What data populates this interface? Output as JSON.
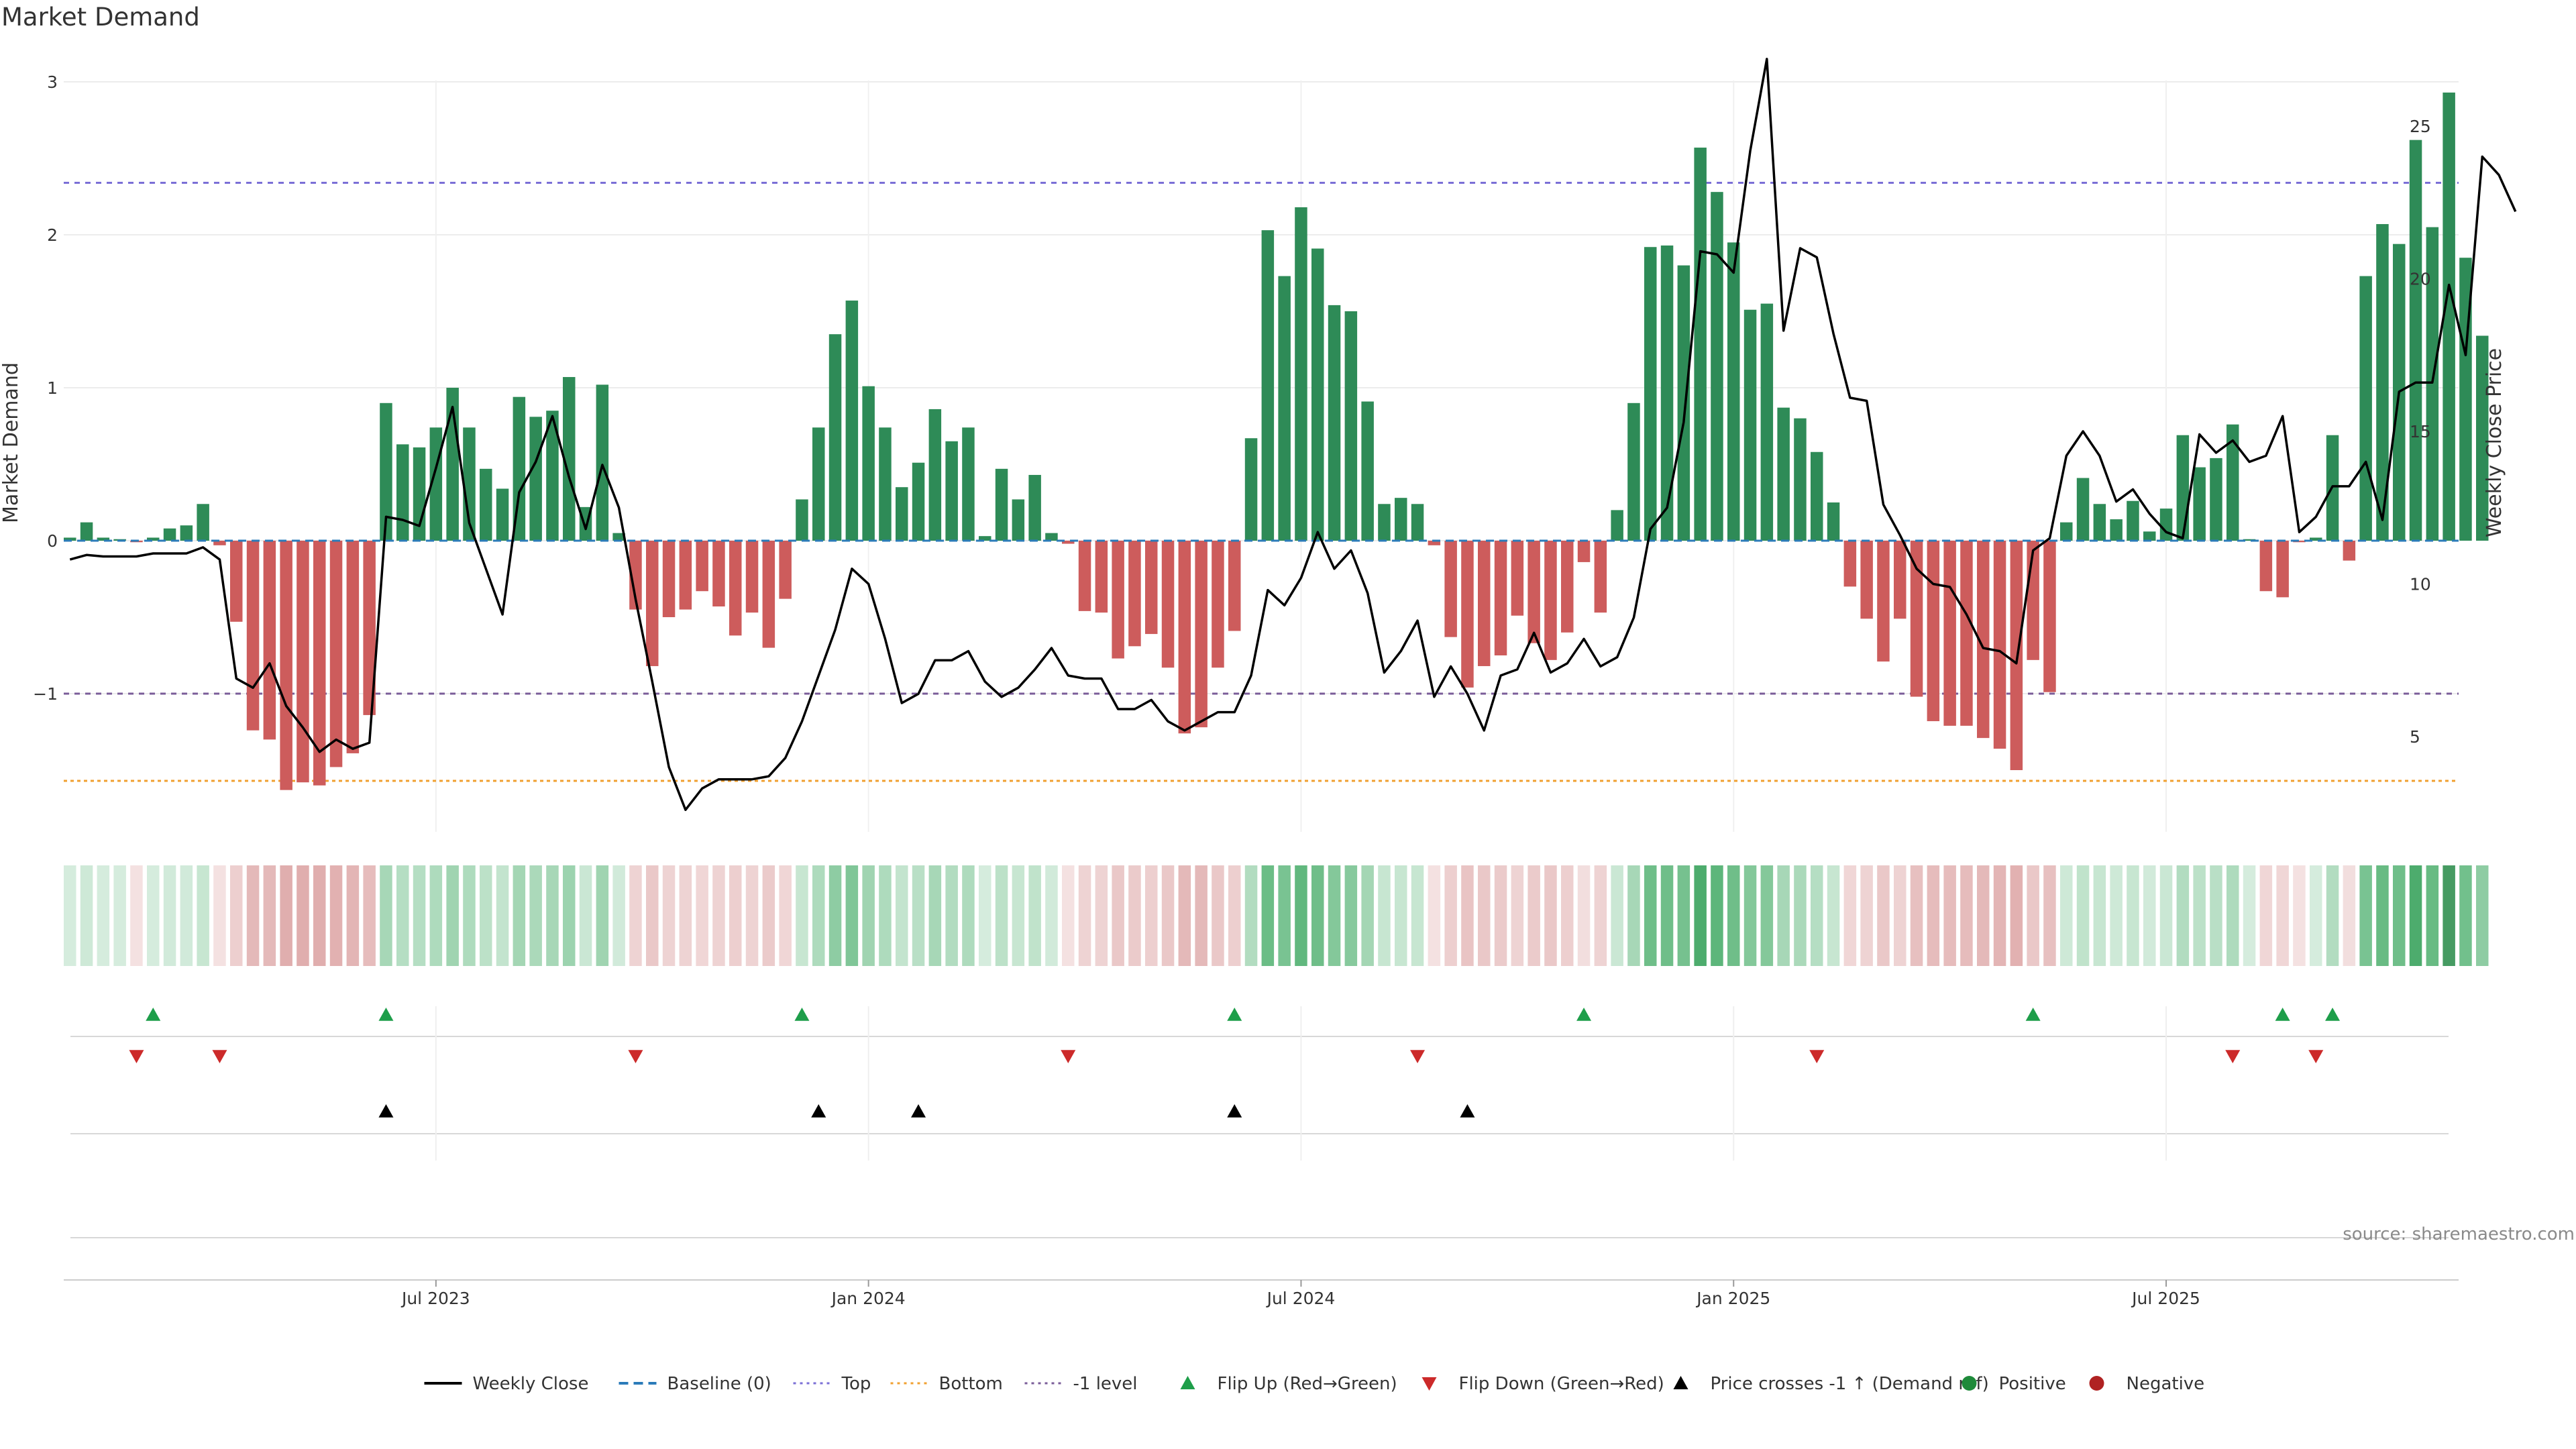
{
  "chart_data": {
    "type": "bar",
    "title": "Market Demand",
    "ylabel": "Market Demand",
    "y2label": "Weekly Close Price",
    "ylim": [
      -1.9,
      3.05
    ],
    "y2lim": [
      2.2,
      27.5
    ],
    "yticks": [
      -1,
      0,
      1,
      2,
      3
    ],
    "y2ticks": [
      5,
      10,
      15,
      20,
      25
    ],
    "ytick_labels": [
      "−1",
      "0",
      "1",
      "2",
      "3"
    ],
    "y2tick_labels": [
      "5",
      "10",
      "15",
      "20",
      "25"
    ],
    "x_tick_indices": [
      22,
      48,
      74,
      100,
      126
    ],
    "x_tick_labels": [
      "Jul 2023",
      "Jan 2024",
      "Jul 2024",
      "Jan 2025",
      "Jul 2025"
    ],
    "reference_lines": [
      {
        "name": "Top",
        "value": 2.34,
        "color": "#7b6fd6",
        "dash": "8,8"
      },
      {
        "name": "-1 level",
        "value": -1.0,
        "color": "#7a5c98",
        "dash": "8,8"
      },
      {
        "name": "Bottom",
        "value": -1.57,
        "color": "#f0a030",
        "dash": "5,5"
      }
    ],
    "series": [
      {
        "name": "Market Demand",
        "kind": "bar",
        "values": [
          0.02,
          0.12,
          0.02,
          0.01,
          -0.01,
          0.02,
          0.08,
          0.1,
          0.24,
          -0.03,
          -0.53,
          -1.24,
          -1.3,
          -1.63,
          -1.58,
          -1.6,
          -1.48,
          -1.39,
          -1.14,
          0.9,
          0.63,
          0.61,
          0.74,
          1.0,
          0.74,
          0.47,
          0.34,
          0.94,
          0.81,
          0.85,
          1.07,
          0.22,
          1.02,
          0.05,
          -0.45,
          -0.82,
          -0.5,
          -0.45,
          -0.33,
          -0.43,
          -0.62,
          -0.47,
          -0.7,
          -0.38,
          0.27,
          0.74,
          1.35,
          1.57,
          1.01,
          0.74,
          0.35,
          0.51,
          0.86,
          0.65,
          0.74,
          0.03,
          0.47,
          0.27,
          0.43,
          0.05,
          -0.02,
          -0.46,
          -0.47,
          -0.77,
          -0.69,
          -0.61,
          -0.83,
          -1.26,
          -1.22,
          -0.83,
          -0.59,
          0.67,
          2.03,
          1.73,
          2.18,
          1.91,
          1.54,
          1.5,
          0.91,
          0.24,
          0.28,
          0.24,
          -0.03,
          -0.63,
          -0.96,
          -0.82,
          -0.75,
          -0.49,
          -0.67,
          -0.78,
          -0.6,
          -0.14,
          -0.47,
          0.2,
          0.9,
          1.92,
          1.93,
          1.8,
          2.57,
          2.28,
          1.95,
          1.51,
          1.55,
          0.87,
          0.8,
          0.58,
          0.25,
          -0.3,
          -0.51,
          -0.79,
          -0.51,
          -1.02,
          -1.18,
          -1.21,
          -1.21,
          -1.29,
          -1.36,
          -1.5,
          -0.78,
          -0.99,
          0.12,
          0.41,
          0.24,
          0.14,
          0.26,
          0.06,
          0.21,
          0.69,
          0.48,
          0.54,
          0.76,
          0.01,
          -0.33,
          -0.37,
          -0.01,
          0.02,
          0.69,
          -0.13,
          1.73,
          2.07,
          1.94,
          2.62,
          2.05,
          2.93,
          1.85,
          1.34
        ]
      },
      {
        "name": "Weekly Close",
        "kind": "line",
        "axis": "y2",
        "values": [
          10.8,
          10.95,
          10.9,
          10.9,
          10.9,
          11.0,
          11.0,
          11.0,
          11.2,
          10.8,
          6.9,
          6.6,
          7.4,
          6.0,
          5.3,
          4.5,
          4.9,
          4.6,
          4.8,
          12.2,
          12.1,
          11.9,
          13.8,
          15.8,
          12.0,
          10.5,
          9.0,
          13.0,
          14.0,
          15.5,
          13.5,
          11.8,
          13.9,
          12.5,
          9.5,
          6.8,
          4.0,
          2.6,
          3.3,
          3.6,
          3.6,
          3.6,
          3.7,
          4.3,
          5.5,
          7.0,
          8.5,
          10.5,
          10.0,
          8.2,
          6.1,
          6.4,
          7.5,
          7.5,
          7.8,
          6.8,
          6.3,
          6.6,
          7.2,
          7.9,
          7.0,
          6.9,
          6.9,
          5.9,
          5.9,
          6.2,
          5.5,
          5.2,
          5.5,
          5.8,
          5.8,
          7.0,
          9.8,
          9.3,
          10.2,
          11.7,
          10.5,
          11.1,
          9.7,
          7.1,
          7.8,
          8.8,
          6.3,
          7.3,
          6.4,
          5.2,
          7.0,
          7.2,
          8.4,
          7.1,
          7.4,
          8.2,
          7.3,
          7.6,
          8.9,
          11.8,
          12.5,
          15.3,
          20.9,
          20.8,
          20.2,
          24.2,
          27.2,
          18.3,
          21.0,
          20.7,
          18.2,
          16.1,
          16.0,
          12.6,
          11.6,
          10.5,
          10.0,
          9.9,
          9.0,
          7.9,
          7.8,
          7.4,
          11.1,
          11.5,
          14.2,
          15.0,
          14.2,
          12.7,
          13.1,
          12.3,
          11.7,
          11.5,
          14.9,
          14.3,
          14.7,
          14.0,
          14.2,
          15.5,
          11.7,
          12.2,
          13.2,
          13.2,
          14.0,
          12.1,
          16.3,
          16.6,
          16.6,
          19.8,
          17.5,
          24.0,
          23.4,
          22.2
        ]
      }
    ],
    "heat_strip": {
      "name": "Demand heat strip",
      "description_source": "same values as Market Demand series"
    },
    "signal_rows": [
      {
        "name": "Flip Up (Red→Green)",
        "marker": "triangle-up",
        "color": "#1e9e4a",
        "indices": [
          5,
          19,
          44,
          70,
          91,
          118,
          133,
          136
        ]
      },
      {
        "name": "Flip Down (Green→Red)",
        "marker": "triangle-down",
        "color": "#cc2a2a",
        "indices": [
          4,
          9,
          34,
          60,
          81,
          105,
          130,
          135
        ]
      },
      {
        "name": "Price crosses -1 ↑ (Demand ref)",
        "marker": "triangle-up",
        "color": "#000000",
        "indices": [
          19,
          45,
          51,
          70,
          84
        ]
      },
      {
        "name": "Positive / Negative",
        "marker": "circle",
        "color": "#1e8a3a",
        "indices": []
      }
    ],
    "legend": [
      {
        "label": "Weekly Close",
        "kind": "line",
        "color": "#000000"
      },
      {
        "label": "Baseline (0)",
        "kind": "dash",
        "color": "#2b7bb9"
      },
      {
        "label": "Top",
        "kind": "dot",
        "color": "#7b6fd6"
      },
      {
        "label": "Bottom",
        "kind": "dot",
        "color": "#f0a030"
      },
      {
        "label": "-1 level",
        "kind": "dot",
        "color": "#7a5c98"
      },
      {
        "label": "Flip Up (Red→Green)",
        "kind": "tri-up",
        "color": "#1e9e4a"
      },
      {
        "label": "Flip Down (Green→Red)",
        "kind": "tri-down",
        "color": "#cc2a2a"
      },
      {
        "label": "Price crosses -1 ↑ (Demand ref)",
        "kind": "tri-up",
        "color": "#000000"
      },
      {
        "label": "Positive",
        "kind": "circle",
        "color": "#1e8a3a"
      },
      {
        "label": "Negative",
        "kind": "circle",
        "color": "#b02222"
      }
    ],
    "source": "source: sharemaestro.com",
    "colors": {
      "positive": "#2e8b57",
      "negative": "#cd5c5c",
      "line": "#000000"
    }
  }
}
